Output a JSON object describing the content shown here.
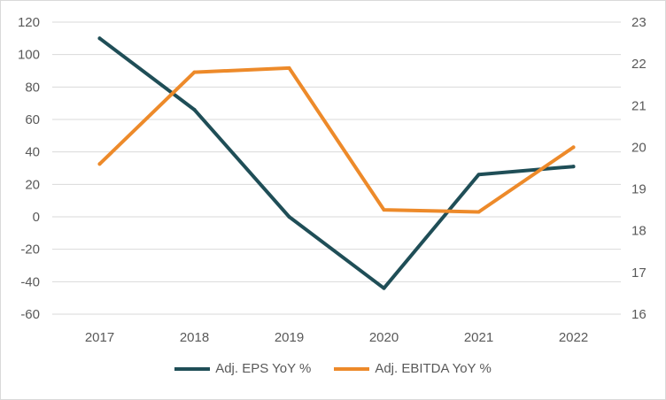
{
  "chart_data": {
    "type": "line",
    "categories": [
      "2017",
      "2018",
      "2019",
      "2020",
      "2021",
      "2022"
    ],
    "series": [
      {
        "name": "Adj. EPS YoY %",
        "axis": "left",
        "color": "#1f4e57",
        "values": [
          110,
          66,
          0,
          -44,
          26,
          31
        ]
      },
      {
        "name": "Adj. EBITDA YoY %",
        "axis": "right",
        "color": "#ed8a2a",
        "values": [
          19.6,
          21.8,
          21.9,
          18.5,
          18.45,
          20.0
        ]
      }
    ],
    "y_left": {
      "ticks": [
        "120",
        "100",
        "80",
        "60",
        "40",
        "20",
        "0",
        "-20",
        "-40",
        "-60"
      ],
      "ylim": [
        -60,
        120
      ]
    },
    "y_right": {
      "ticks": [
        "23",
        "22",
        "21",
        "20",
        "19",
        "18",
        "17",
        "16"
      ],
      "ylim": [
        16,
        23
      ]
    },
    "grid": true,
    "legend_position": "bottom"
  }
}
